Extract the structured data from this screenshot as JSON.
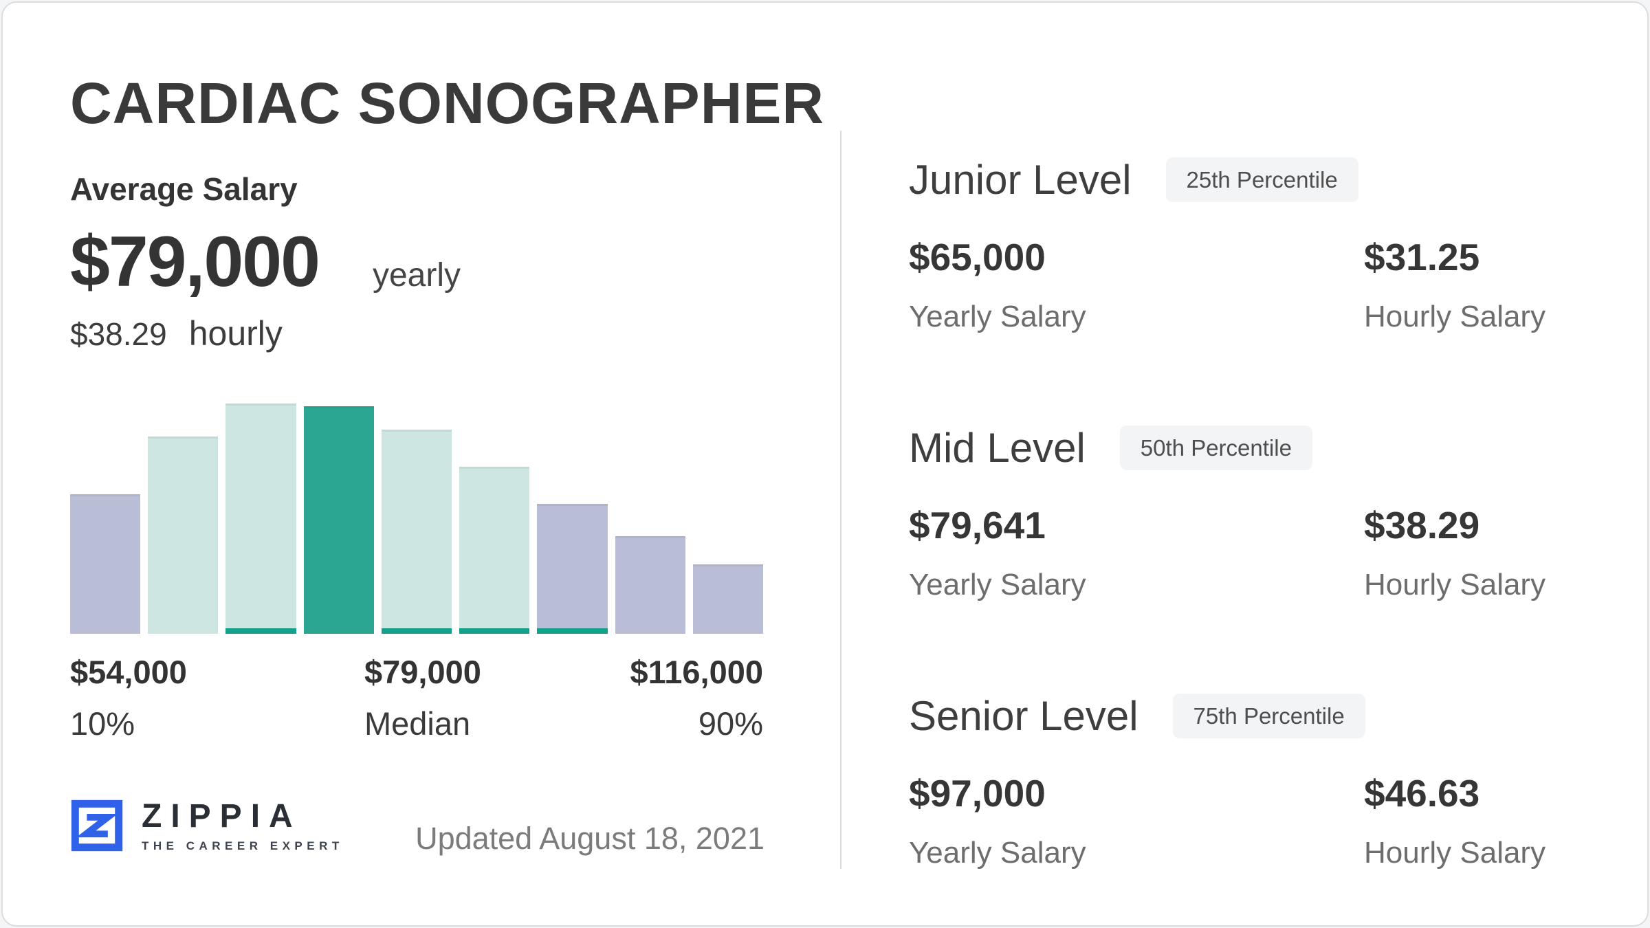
{
  "page": {
    "title": "CARDIAC SONOGRAPHER"
  },
  "average_salary": {
    "section_label": "Average Salary",
    "yearly_value": "$79,000",
    "yearly_unit": "yearly",
    "hourly_value": "$38.29",
    "hourly_unit": "hourly"
  },
  "chart_data": {
    "type": "bar",
    "title": "Cardiac Sonographer salary distribution histogram",
    "unit": "relative frequency, percent of tallest bar",
    "bars": [
      {
        "height": 60,
        "color": "lavender",
        "underline": false
      },
      {
        "height": 85,
        "color": "teal_light",
        "underline": false
      },
      {
        "height": 99,
        "color": "teal_light",
        "underline": true
      },
      {
        "height": 98,
        "color": "teal_dark",
        "underline": false
      },
      {
        "height": 88,
        "color": "teal_light",
        "underline": true
      },
      {
        "height": 72,
        "color": "teal_light",
        "underline": true
      },
      {
        "height": 56,
        "color": "lavender",
        "underline": true
      },
      {
        "height": 42,
        "color": "lavender",
        "underline": false
      },
      {
        "height": 30,
        "color": "lavender",
        "underline": false
      }
    ],
    "palette": {
      "lavender": "#b9bed6",
      "teal_light": "#cde6e1",
      "teal_dark": "#2aa693",
      "underline": "#12a28b"
    },
    "x_markers": [
      {
        "value": "$54,000",
        "label": "10%"
      },
      {
        "value": "$79,000",
        "label": "Median"
      },
      {
        "value": "$116,000",
        "label": "90%"
      }
    ],
    "ylim": [
      0,
      100
    ],
    "grid": false,
    "legend": false
  },
  "levels": [
    {
      "name": "Junior Level",
      "badge": "25th Percentile",
      "yearly_value": "$65,000",
      "hourly_value": "$31.25"
    },
    {
      "name": "Mid Level",
      "badge": "50th Percentile",
      "yearly_value": "$79,641",
      "hourly_value": "$38.29"
    },
    {
      "name": "Senior Level",
      "badge": "75th Percentile",
      "yearly_value": "$97,000",
      "hourly_value": "$46.63"
    }
  ],
  "labels": {
    "yearly": "Yearly Salary",
    "hourly": "Hourly Salary"
  },
  "footer": {
    "brand": "ZIPPIA",
    "tagline": "THE CAREER EXPERT",
    "updated": "Updated August 18, 2021",
    "brand_color": "#2f62e9"
  }
}
